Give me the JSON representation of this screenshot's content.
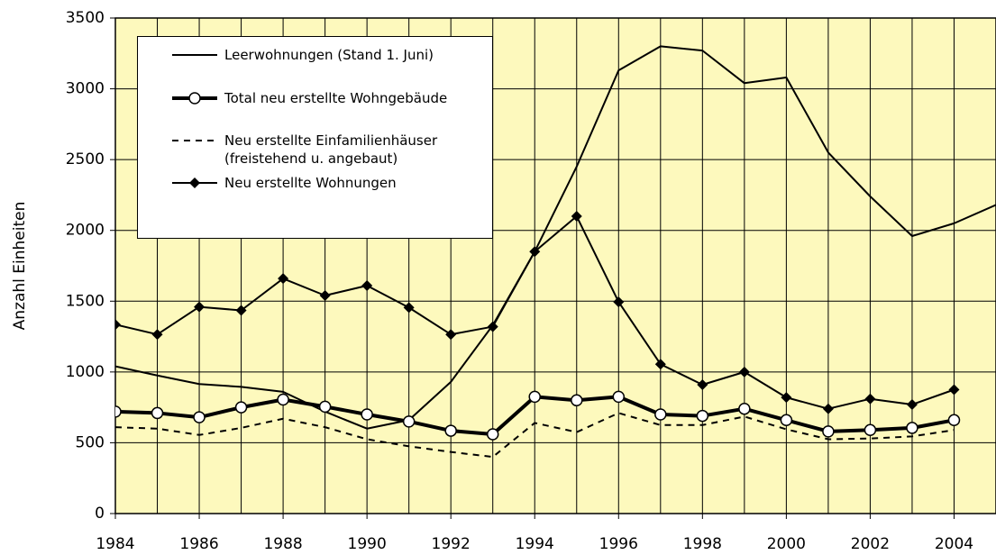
{
  "chart_data": {
    "type": "line",
    "y_label": "Anzahl Einheiten",
    "x": [
      1984,
      1985,
      1986,
      1987,
      1988,
      1989,
      1990,
      1991,
      1992,
      1993,
      1994,
      1995,
      1996,
      1997,
      1998,
      1999,
      2000,
      2001,
      2002,
      2003,
      2004,
      2005
    ],
    "xlim": [
      1984,
      2005
    ],
    "xticks": [
      1984,
      1986,
      1988,
      1990,
      1992,
      1994,
      1996,
      1998,
      2000,
      2002,
      2004
    ],
    "ylim": [
      0,
      3500
    ],
    "yticks": [
      0,
      500,
      1000,
      1500,
      2000,
      2500,
      3000,
      3500
    ],
    "grid": true,
    "background": "#fdf9bd",
    "legend": "upper left",
    "series": [
      {
        "name": "Leerwohnungen (Stand 1. Juni)",
        "color": "#000000",
        "width": 2,
        "dash": false,
        "marker": "none",
        "values": [
          1040,
          975,
          915,
          895,
          860,
          720,
          600,
          660,
          930,
          1330,
          1850,
          2450,
          3130,
          3300,
          3270,
          3040,
          3080,
          2550,
          2240,
          1960,
          2050,
          2180
        ]
      },
      {
        "name": "Total neu erstellte Wohngebäude",
        "color": "#000000",
        "width": 4,
        "dash": false,
        "marker": "circle",
        "values": [
          720,
          710,
          680,
          750,
          805,
          755,
          700,
          650,
          585,
          560,
          825,
          800,
          825,
          700,
          690,
          740,
          660,
          580,
          590,
          605,
          660,
          null
        ]
      },
      {
        "name": "Neu erstellte Einfamilienhäuser\n(freistehend u. angebaut)",
        "color": "#000000",
        "width": 2,
        "dash": true,
        "marker": "none",
        "values": [
          610,
          600,
          555,
          605,
          670,
          610,
          525,
          475,
          435,
          400,
          640,
          575,
          710,
          625,
          625,
          685,
          595,
          525,
          530,
          545,
          590,
          null
        ]
      },
      {
        "name": "Neu erstellte Wohnungen",
        "color": "#000000",
        "width": 2,
        "dash": false,
        "marker": "diamond",
        "values": [
          1335,
          1265,
          1460,
          1435,
          1660,
          1540,
          1610,
          1455,
          1265,
          1320,
          1850,
          2100,
          1495,
          1055,
          910,
          1000,
          820,
          740,
          810,
          770,
          875,
          null
        ]
      }
    ]
  }
}
